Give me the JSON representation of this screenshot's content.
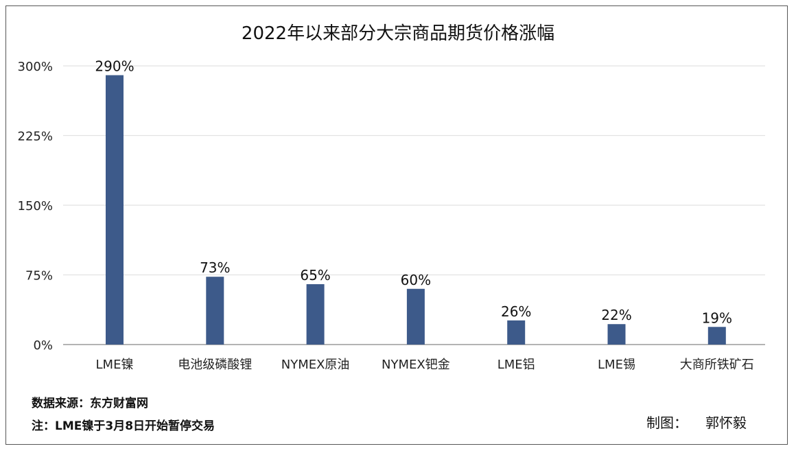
{
  "chart_data": {
    "type": "bar",
    "title": "2022年以来部分大宗商品期货价格涨幅",
    "categories": [
      "LME镍",
      "电池级磷酸锂",
      "NYMEX原油",
      "NYMEX钯金",
      "LME铝",
      "LME锡",
      "大商所铁矿石"
    ],
    "values": [
      290,
      73,
      65,
      60,
      26,
      22,
      19
    ],
    "data_labels": [
      "290%",
      "73%",
      "65%",
      "60%",
      "26%",
      "22%",
      "19%"
    ],
    "ylim": [
      0,
      300
    ],
    "yticks": [
      0,
      75,
      150,
      225,
      300
    ],
    "ytick_labels": [
      "0%",
      "75%",
      "150%",
      "225%",
      "300%"
    ],
    "xlabel": "",
    "ylabel": "",
    "grid": true,
    "bar_color": "#3d5a8a",
    "grid_color": "#e2e2e2"
  },
  "footer": {
    "source": "数据来源：东方财富网",
    "note": "注：LME镍于3月8日开始暂停交易",
    "credit_label": "制图：",
    "credit_name": "郭怀毅"
  }
}
